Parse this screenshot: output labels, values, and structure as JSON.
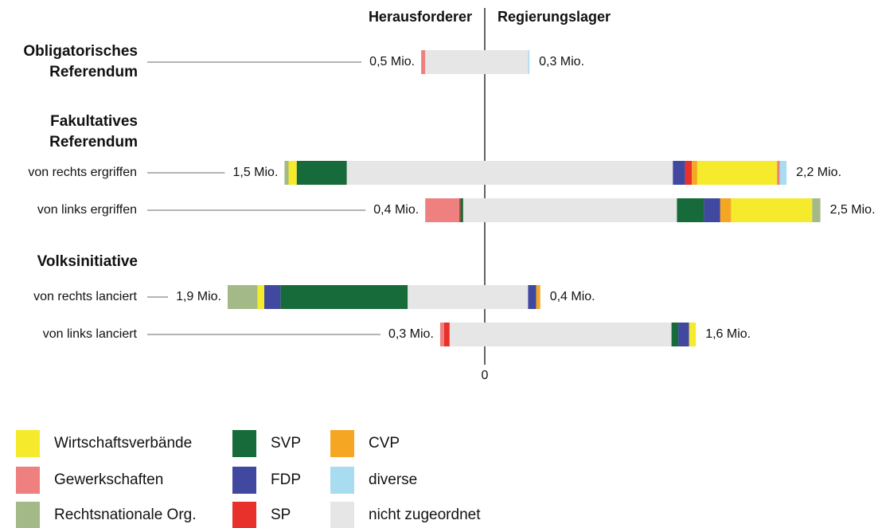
{
  "chart_data": {
    "type": "diverging-stacked-bar",
    "headers": [
      "Herausforderer",
      "Regierungslager"
    ],
    "categories": [
      "Obligatorisches Referendum",
      "von rechts ergriffen",
      "von links ergriffen",
      "von rechts lanciert",
      "von  links lanciert"
    ],
    "groups": [
      "Fakultatives Referendum",
      "Volksinitiative"
    ],
    "left_labels": [
      "0,5 Mio.",
      "1,5 Mio.",
      "0,4 Mio.",
      "1,9 Mio.",
      "0,3 Mio."
    ],
    "right_labels": [
      "0,3 Mio.",
      "2,2 Mio.",
      "2,5 Mio.",
      "0,4 Mio.",
      "1,6 Mio."
    ],
    "xlim": [
      -2.4,
      2.9
    ],
    "xticks": [
      0
    ],
    "series": [
      {
        "name": "nicht zugeordnet",
        "color": "#e6e6e6",
        "left": [
          0.44,
          1.02,
          0.16,
          0.57,
          0.26
        ],
        "right": [
          0.32,
          1.39,
          1.42,
          0.32,
          1.38
        ]
      },
      {
        "name": "SVP",
        "color": "#176b3a",
        "left": [
          0,
          0.37,
          0.02,
          0.94,
          0
        ],
        "right": [
          0,
          0,
          0.2,
          0,
          0.05
        ]
      },
      {
        "name": "FDP",
        "color": "#4048a0",
        "left": [
          0,
          0,
          0,
          0.12,
          0
        ],
        "right": [
          0,
          0.09,
          0.12,
          0.06,
          0.08
        ]
      },
      {
        "name": "SP",
        "color": "#e8312a",
        "left": [
          0,
          0,
          0.01,
          0,
          0.04
        ],
        "right": [
          0,
          0.05,
          0,
          0,
          0
        ]
      },
      {
        "name": "CVP",
        "color": "#f5a623",
        "left": [
          0,
          0,
          0,
          0,
          0
        ],
        "right": [
          0,
          0.04,
          0.08,
          0.03,
          0
        ]
      },
      {
        "name": "Wirtschaftsverbände",
        "color": "#f5ea2c",
        "left": [
          0,
          0.06,
          0,
          0.05,
          0
        ],
        "right": [
          0,
          0.59,
          0.6,
          0,
          0.05
        ]
      },
      {
        "name": "Gewerkschaften",
        "color": "#ef8080",
        "left": [
          0.03,
          0,
          0.25,
          0,
          0.03
        ],
        "right": [
          0,
          0.02,
          0,
          0,
          0
        ]
      },
      {
        "name": "Rechtsnationale Org.",
        "color": "#a3b987",
        "left": [
          0,
          0.03,
          0,
          0.22,
          0
        ],
        "right": [
          0,
          0,
          0.06,
          0,
          0
        ]
      },
      {
        "name": "diverse",
        "color": "#a8dcf0",
        "left": [
          0,
          0,
          0,
          0,
          0
        ],
        "right": [
          0.01,
          0.05,
          0,
          0,
          0
        ]
      }
    ]
  }
}
